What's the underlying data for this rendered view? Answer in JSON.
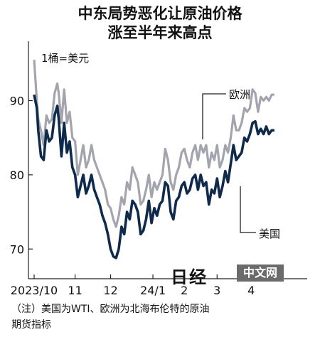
{
  "chart_data": {
    "type": "line",
    "title": "中东局势恶化让原油价格",
    "subtitle": "涨至半年来高点",
    "unit_note": "1桶=美元",
    "yticks": [
      70,
      80,
      90
    ],
    "ylim": [
      66,
      98
    ],
    "xlim": [
      0,
      200
    ],
    "xticks": [
      {
        "label": "2023/10",
        "x": 0
      },
      {
        "label": "11",
        "x": 30
      },
      {
        "label": "12",
        "x": 56
      },
      {
        "label": "24/1",
        "x": 87
      },
      {
        "label": "2",
        "x": 110
      },
      {
        "label": "3",
        "x": 134
      },
      {
        "label": "4",
        "x": 159
      }
    ],
    "series": [
      {
        "name": "欧洲",
        "color": "#a3a4ad",
        "x": [
          0,
          2,
          3,
          5,
          7,
          9,
          11,
          13,
          15,
          17,
          18,
          20,
          22,
          24,
          26,
          28,
          30,
          32,
          34,
          36,
          38,
          40,
          42,
          44,
          46,
          48,
          50,
          52,
          54,
          56,
          58,
          60,
          62,
          64,
          66,
          68,
          70,
          72,
          74,
          76,
          78,
          80,
          82,
          84,
          86,
          88,
          90,
          92,
          94,
          96,
          98,
          100,
          102,
          104,
          106,
          108,
          110,
          112,
          114,
          116,
          118,
          120,
          122,
          124,
          126,
          128,
          130,
          132,
          134,
          136,
          138,
          140,
          142,
          144,
          146,
          148,
          150,
          152,
          154,
          156,
          158,
          160,
          162,
          164,
          166,
          168,
          170,
          172,
          174,
          176
        ],
        "values": [
          95.5,
          90,
          87.5,
          86,
          84,
          88,
          87,
          87.5,
          91,
          92.3,
          91,
          87,
          91.5,
          87,
          88.5,
          85,
          84.5,
          80,
          82,
          84,
          81,
          82,
          84,
          82,
          81,
          80,
          79,
          78,
          76,
          75.5,
          74,
          73,
          74.5,
          77,
          76,
          79,
          78,
          81,
          80,
          79,
          76,
          76.5,
          78,
          80,
          77,
          79,
          78,
          79,
          80,
          83.5,
          82,
          79,
          78,
          80,
          81,
          83,
          83.5,
          82,
          81,
          83,
          84,
          82,
          84,
          83,
          84,
          81,
          83,
          82,
          84,
          81,
          82,
          84,
          83,
          85,
          88,
          86,
          86,
          87,
          89,
          88.5,
          89,
          91.5,
          91,
          88.5,
          90.5,
          90,
          90.5,
          90,
          90.8,
          90.8
        ]
      },
      {
        "name": "美国",
        "color": "#0e2a4c",
        "x": [
          0,
          2,
          3,
          5,
          7,
          9,
          11,
          13,
          15,
          17,
          18,
          20,
          22,
          24,
          26,
          28,
          30,
          32,
          34,
          36,
          38,
          40,
          42,
          44,
          46,
          48,
          50,
          52,
          54,
          56,
          58,
          60,
          62,
          64,
          66,
          68,
          70,
          72,
          74,
          76,
          78,
          80,
          82,
          84,
          86,
          88,
          90,
          92,
          94,
          96,
          98,
          100,
          102,
          104,
          106,
          108,
          110,
          112,
          114,
          116,
          118,
          120,
          122,
          124,
          126,
          128,
          130,
          132,
          134,
          136,
          138,
          140,
          142,
          144,
          146,
          148,
          150,
          152,
          154,
          156,
          158,
          160,
          162,
          164,
          166,
          168,
          170,
          172,
          174,
          176
        ],
        "values": [
          90.8,
          89,
          86,
          82.5,
          82,
          86,
          84.5,
          85,
          88,
          89.3,
          87.5,
          82.5,
          87,
          83,
          84.5,
          81,
          80,
          77,
          78.5,
          80,
          77.5,
          78.5,
          80,
          78,
          77,
          76,
          74.5,
          73.5,
          72,
          70,
          69,
          68.8,
          70,
          73,
          72,
          75,
          74,
          76.5,
          76,
          75,
          72,
          72.5,
          74,
          76.5,
          73.5,
          75.5,
          74.5,
          76,
          76.5,
          79,
          78.5,
          75,
          74,
          76.5,
          77,
          78.5,
          79,
          77.5,
          78,
          79.5,
          80,
          78,
          80,
          78.5,
          79,
          76,
          78,
          77.5,
          79.5,
          77,
          78.5,
          80.5,
          79,
          81.5,
          84,
          82,
          82.5,
          83,
          85,
          84.5,
          85.5,
          87,
          87.2,
          85.5,
          86.2,
          85.5,
          86.5,
          85.5,
          86,
          86
        ]
      }
    ],
    "labels": {
      "europe": "欧洲",
      "us": "美国"
    }
  },
  "note_lines": [
    "（注）美国为WTI、欧洲为北海布伦特的原油",
    "期货指标"
  ],
  "logo": {
    "japanese": "日经",
    "chinese": "中文网"
  }
}
